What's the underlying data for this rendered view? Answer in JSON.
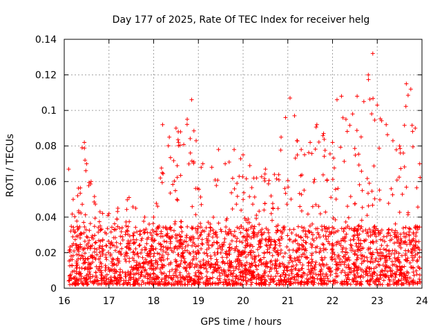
{
  "chart_data": {
    "type": "scatter",
    "title": "Day 177 of 2025, Rate Of TEC Index for receiver helg",
    "xlabel": "GPS time / hours",
    "ylabel": "ROTI / TECUs",
    "xlim": [
      16,
      24
    ],
    "ylim": [
      0,
      0.14
    ],
    "x_ticks": [
      16,
      17,
      18,
      19,
      20,
      21,
      22,
      23,
      24
    ],
    "y_ticks": [
      0,
      0.02,
      0.04,
      0.06,
      0.08,
      0.1,
      0.12,
      0.14
    ],
    "x_tick_labels": [
      "16",
      "17",
      "18",
      "19",
      "20",
      "21",
      "22",
      "23",
      "24"
    ],
    "y_tick_labels": [
      "0",
      "0.02",
      "0.04",
      "0.06",
      "0.08",
      "0.1",
      "0.12",
      "0.14"
    ],
    "grid": true,
    "marker": "+",
    "color": "#ff0000",
    "series": [
      {
        "name": "ROTI",
        "envelope_description": "dense cloud of points; representative upper envelope (hour, ROTI)",
        "upper_envelope": [
          [
            16.1,
            0.067
          ],
          [
            16.2,
            0.05
          ],
          [
            16.3,
            0.052
          ],
          [
            16.4,
            0.079
          ],
          [
            16.45,
            0.082
          ],
          [
            16.5,
            0.07
          ],
          [
            16.6,
            0.06
          ],
          [
            16.8,
            0.043
          ],
          [
            17.0,
            0.042
          ],
          [
            17.2,
            0.045
          ],
          [
            17.45,
            0.051
          ],
          [
            17.6,
            0.045
          ],
          [
            17.8,
            0.04
          ],
          [
            18.0,
            0.04
          ],
          [
            18.15,
            0.062
          ],
          [
            18.2,
            0.092
          ],
          [
            18.35,
            0.085
          ],
          [
            18.5,
            0.09
          ],
          [
            18.6,
            0.088
          ],
          [
            18.75,
            0.095
          ],
          [
            18.85,
            0.106
          ],
          [
            18.95,
            0.083
          ],
          [
            19.1,
            0.07
          ],
          [
            19.3,
            0.068
          ],
          [
            19.45,
            0.078
          ],
          [
            19.6,
            0.07
          ],
          [
            19.8,
            0.078
          ],
          [
            20.0,
            0.075
          ],
          [
            20.15,
            0.069
          ],
          [
            20.3,
            0.062
          ],
          [
            20.5,
            0.067
          ],
          [
            20.7,
            0.064
          ],
          [
            20.85,
            0.085
          ],
          [
            20.95,
            0.096
          ],
          [
            21.05,
            0.107
          ],
          [
            21.15,
            0.097
          ],
          [
            21.3,
            0.078
          ],
          [
            21.5,
            0.082
          ],
          [
            21.65,
            0.092
          ],
          [
            21.8,
            0.087
          ],
          [
            22.0,
            0.082
          ],
          [
            22.1,
            0.106
          ],
          [
            22.2,
            0.108
          ],
          [
            22.3,
            0.095
          ],
          [
            22.45,
            0.098
          ],
          [
            22.55,
            0.108
          ],
          [
            22.7,
            0.105
          ],
          [
            22.8,
            0.12
          ],
          [
            22.9,
            0.132
          ],
          [
            23.0,
            0.103
          ],
          [
            23.2,
            0.092
          ],
          [
            23.35,
            0.083
          ],
          [
            23.5,
            0.08
          ],
          [
            23.65,
            0.115
          ],
          [
            23.75,
            0.112
          ],
          [
            23.85,
            0.09
          ],
          [
            23.95,
            0.07
          ]
        ],
        "lower_bound": 0.002,
        "dense_core_range": [
          0.005,
          0.035
        ]
      }
    ]
  }
}
